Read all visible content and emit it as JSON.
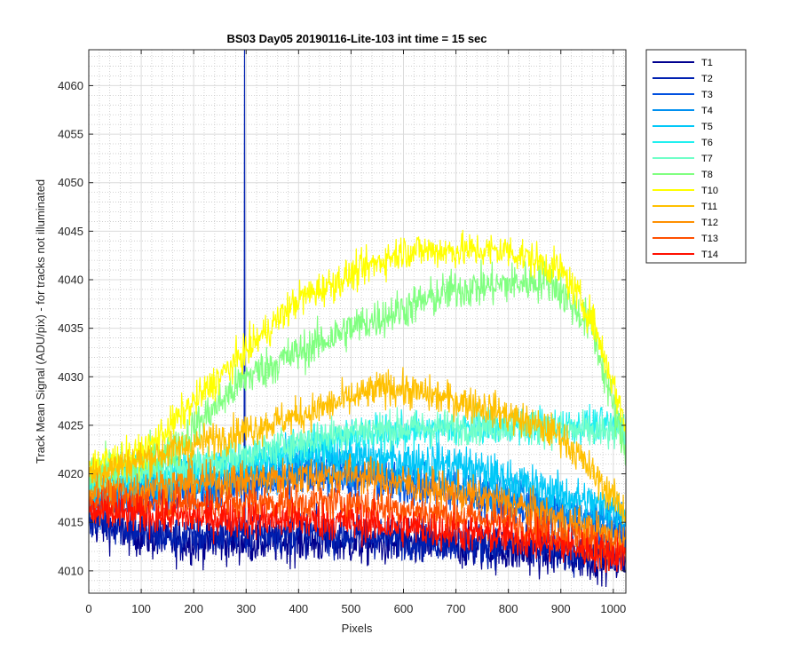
{
  "chart_data": {
    "type": "line",
    "title": "BS03 Day05 20190116-Lite-103 int time = 15 sec",
    "xlabel": "Pixels",
    "ylabel": "Track Mean Signal (ADU/pix) - for tracks not illuminated",
    "xlim": [
      0,
      1024
    ],
    "ylim": [
      4007.7,
      4063.7
    ],
    "x_ticks": [
      0,
      100,
      200,
      300,
      400,
      500,
      600,
      700,
      800,
      900,
      1000
    ],
    "y_ticks": [
      4010,
      4015,
      4020,
      4025,
      4030,
      4035,
      4040,
      4045,
      4050,
      4055,
      4060
    ],
    "x_tick_labels": [
      "0",
      "100",
      "200",
      "300",
      "400",
      "500",
      "600",
      "700",
      "800",
      "900",
      "1000"
    ],
    "y_tick_labels": [
      "4010",
      "4015",
      "4020",
      "4025",
      "4030",
      "4035",
      "4040",
      "4045",
      "4050",
      "4055",
      "4060"
    ],
    "grid": true,
    "minor_grid": true,
    "legend_position": "outside-top-right",
    "series": [
      {
        "name": "T1",
        "color": "#00008f",
        "profile": [
          [
            0,
            4015
          ],
          [
            150,
            4013
          ],
          [
            400,
            4013
          ],
          [
            700,
            4012.5
          ],
          [
            1024,
            4011
          ]
        ],
        "noise": 1.6
      },
      {
        "name": "T2",
        "color": "#0020b0",
        "profile": [
          [
            0,
            4015.5
          ],
          [
            150,
            4013.5
          ],
          [
            400,
            4014
          ],
          [
            700,
            4013
          ],
          [
            1024,
            4011.5
          ]
        ],
        "noise": 1.5,
        "spike": {
          "x": 297,
          "y": 4063.7
        }
      },
      {
        "name": "T3",
        "color": "#0050e0",
        "profile": [
          [
            0,
            4017
          ],
          [
            200,
            4018
          ],
          [
            450,
            4020
          ],
          [
            700,
            4018
          ],
          [
            1024,
            4014
          ]
        ],
        "noise": 1.5
      },
      {
        "name": "T4",
        "color": "#0090f0",
        "profile": [
          [
            0,
            4018
          ],
          [
            200,
            4019
          ],
          [
            450,
            4021
          ],
          [
            700,
            4019
          ],
          [
            1024,
            4015
          ]
        ],
        "noise": 1.5
      },
      {
        "name": "T5",
        "color": "#00c8f8",
        "profile": [
          [
            0,
            4018.5
          ],
          [
            200,
            4020
          ],
          [
            450,
            4022
          ],
          [
            700,
            4021
          ],
          [
            1024,
            4016
          ]
        ],
        "noise": 1.5
      },
      {
        "name": "T6",
        "color": "#20f0f0",
        "profile": [
          [
            0,
            4019
          ],
          [
            250,
            4021
          ],
          [
            500,
            4024
          ],
          [
            800,
            4025
          ],
          [
            1024,
            4025
          ]
        ],
        "noise": 1.3
      },
      {
        "name": "T7",
        "color": "#70ffc8",
        "profile": [
          [
            0,
            4019.5
          ],
          [
            250,
            4021.5
          ],
          [
            500,
            4024.5
          ],
          [
            800,
            4025
          ],
          [
            1024,
            4024
          ]
        ],
        "noise": 1.3
      },
      {
        "name": "T8",
        "color": "#80ff80",
        "profile": [
          [
            0,
            4020
          ],
          [
            150,
            4022
          ],
          [
            300,
            4030
          ],
          [
            500,
            4035
          ],
          [
            700,
            4039
          ],
          [
            880,
            4040
          ],
          [
            960,
            4035
          ],
          [
            1024,
            4022
          ]
        ],
        "noise": 1.5
      },
      {
        "name": "T10",
        "color": "#ffff00",
        "profile": [
          [
            0,
            4021
          ],
          [
            100,
            4022
          ],
          [
            250,
            4030
          ],
          [
            400,
            4038
          ],
          [
            600,
            4043
          ],
          [
            800,
            4043
          ],
          [
            900,
            4041
          ],
          [
            960,
            4036
          ],
          [
            1024,
            4025
          ]
        ],
        "noise": 1.3
      },
      {
        "name": "T11",
        "color": "#ffc000",
        "profile": [
          [
            0,
            4020
          ],
          [
            200,
            4023
          ],
          [
            400,
            4026
          ],
          [
            570,
            4029
          ],
          [
            750,
            4027
          ],
          [
            900,
            4024
          ],
          [
            1024,
            4016
          ]
        ],
        "noise": 1.3
      },
      {
        "name": "T12",
        "color": "#ff9000",
        "profile": [
          [
            0,
            4018
          ],
          [
            200,
            4019
          ],
          [
            500,
            4020
          ],
          [
            800,
            4017
          ],
          [
            1024,
            4013
          ]
        ],
        "noise": 1.4
      },
      {
        "name": "T13",
        "color": "#ff5000",
        "profile": [
          [
            0,
            4017
          ],
          [
            200,
            4017
          ],
          [
            500,
            4017
          ],
          [
            800,
            4015
          ],
          [
            1024,
            4012
          ]
        ],
        "noise": 1.4
      },
      {
        "name": "T14",
        "color": "#ff1000",
        "profile": [
          [
            0,
            4016
          ],
          [
            200,
            4015.5
          ],
          [
            500,
            4015
          ],
          [
            800,
            4013.5
          ],
          [
            1024,
            4011.5
          ]
        ],
        "noise": 1.4
      }
    ]
  }
}
